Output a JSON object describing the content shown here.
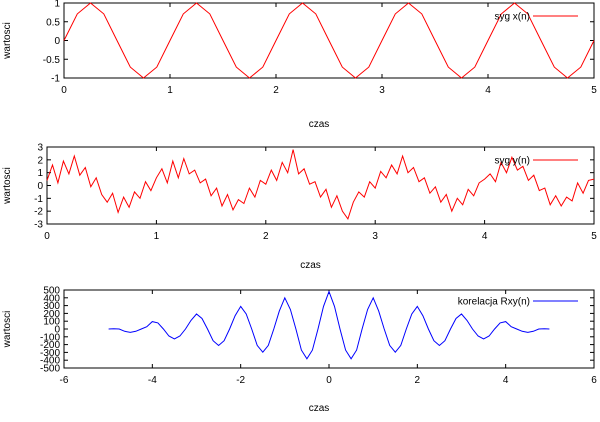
{
  "chart_data": [
    {
      "type": "line",
      "title": "",
      "xlabel": "czas",
      "ylabel": "wartosci",
      "xlim": [
        0,
        5
      ],
      "ylim": [
        -1,
        1
      ],
      "xticks": [
        "0",
        "1",
        "2",
        "3",
        "4",
        "5"
      ],
      "yticks": [
        "1",
        "0.5",
        "0",
        "-0.5",
        "-1"
      ],
      "legend_position": "top-right",
      "grid": false,
      "series": [
        {
          "name": "syg x(n)",
          "color": "#ff0000",
          "x": [
            0,
            0.125,
            0.25,
            0.375,
            0.5,
            0.625,
            0.75,
            0.875,
            1,
            1.125,
            1.25,
            1.375,
            1.5,
            1.625,
            1.75,
            1.875,
            2,
            2.125,
            2.25,
            2.375,
            2.5,
            2.625,
            2.75,
            2.875,
            3,
            3.125,
            3.25,
            3.375,
            3.5,
            3.625,
            3.75,
            3.875,
            4,
            4.125,
            4.25,
            4.375,
            4.5,
            4.625,
            4.75,
            4.875,
            5
          ],
          "values": [
            0,
            0.71,
            1,
            0.71,
            0,
            -0.71,
            -1,
            -0.71,
            0,
            0.71,
            1,
            0.71,
            0,
            -0.71,
            -1,
            -0.71,
            0,
            0.71,
            1,
            0.71,
            0,
            -0.71,
            -1,
            -0.71,
            0,
            0.71,
            1,
            0.71,
            0,
            -0.71,
            -1,
            -0.71,
            0,
            0.71,
            1,
            0.71,
            0,
            -0.71,
            -1,
            -0.71,
            0
          ]
        }
      ]
    },
    {
      "type": "line",
      "title": "",
      "xlabel": "czas",
      "ylabel": "wartosci",
      "xlim": [
        0,
        5
      ],
      "ylim": [
        -3,
        3
      ],
      "xticks": [
        "0",
        "1",
        "2",
        "3",
        "4",
        "5"
      ],
      "yticks": [
        "3",
        "2",
        "1",
        "0",
        "-1",
        "-2",
        "-3"
      ],
      "legend_position": "top-right",
      "grid": false,
      "series": [
        {
          "name": "syg y(n)",
          "color": "#ff0000",
          "x": [
            0,
            0.05,
            0.1,
            0.15,
            0.2,
            0.25,
            0.3,
            0.35,
            0.4,
            0.45,
            0.5,
            0.55,
            0.6,
            0.65,
            0.7,
            0.75,
            0.8,
            0.85,
            0.9,
            0.95,
            1,
            1.05,
            1.1,
            1.15,
            1.2,
            1.25,
            1.3,
            1.35,
            1.4,
            1.45,
            1.5,
            1.55,
            1.6,
            1.65,
            1.7,
            1.75,
            1.8,
            1.85,
            1.9,
            1.95,
            2,
            2.05,
            2.1,
            2.15,
            2.2,
            2.25,
            2.3,
            2.35,
            2.4,
            2.45,
            2.5,
            2.55,
            2.6,
            2.65,
            2.7,
            2.75,
            2.8,
            2.85,
            2.9,
            2.95,
            3,
            3.05,
            3.1,
            3.15,
            3.2,
            3.25,
            3.3,
            3.35,
            3.4,
            3.45,
            3.5,
            3.55,
            3.6,
            3.65,
            3.7,
            3.75,
            3.8,
            3.85,
            3.9,
            3.95,
            4,
            4.05,
            4.1,
            4.15,
            4.2,
            4.25,
            4.3,
            4.35,
            4.4,
            4.45,
            4.5,
            4.55,
            4.6,
            4.65,
            4.7,
            4.75,
            4.8,
            4.85,
            4.9,
            4.95,
            5
          ],
          "values": [
            0.4,
            1.6,
            0.2,
            1.9,
            0.9,
            2.3,
            0.8,
            1.4,
            -0.1,
            0.6,
            -0.7,
            -1.3,
            -0.6,
            -2.1,
            -0.9,
            -1.7,
            -0.5,
            -1.0,
            0.3,
            -0.4,
            0.6,
            1.3,
            0.2,
            1.9,
            0.6,
            2.1,
            0.9,
            1.2,
            0.2,
            0.5,
            -0.8,
            -0.2,
            -1.6,
            -0.7,
            -1.9,
            -1.1,
            -1.4,
            -0.2,
            -0.9,
            0.4,
            0.1,
            1.2,
            0.4,
            1.8,
            1.0,
            2.8,
            0.9,
            1.3,
            0.1,
            0.3,
            -0.9,
            -0.3,
            -1.7,
            -0.8,
            -2.0,
            -2.6,
            -1.3,
            -0.5,
            -0.9,
            0.3,
            -0.2,
            1.1,
            0.6,
            1.6,
            0.9,
            2.3,
            1.0,
            1.4,
            0.3,
            0.6,
            -0.6,
            -0.1,
            -1.3,
            -0.7,
            -2.0,
            -1.0,
            -1.5,
            -0.3,
            -0.8,
            0.2,
            0.5,
            0.9,
            0.3,
            1.8,
            1.0,
            2.2,
            1.2,
            1.5,
            0.4,
            0.8,
            -0.4,
            -0.2,
            -1.5,
            -0.8,
            -1.6,
            -0.9,
            -1.2,
            0.2,
            -0.6,
            0.4,
            0.5
          ]
        }
      ]
    },
    {
      "type": "line",
      "title": "",
      "xlabel": "czas",
      "ylabel": "wartosci",
      "xlim": [
        -6,
        6
      ],
      "ylim": [
        -500,
        500
      ],
      "xticks": [
        "-6",
        "-4",
        "-2",
        "0",
        "2",
        "4",
        "6"
      ],
      "yticks": [
        "500",
        "400",
        "300",
        "200",
        "100",
        "0",
        "-100",
        "-200",
        "-300",
        "-400",
        "-500"
      ],
      "legend_position": "top-right",
      "grid": false,
      "series": [
        {
          "name": "korelacja Rxy(n)",
          "color": "#0000ff",
          "x": [
            -4.99,
            -4.875,
            -4.75,
            -4.625,
            -4.5,
            -4.375,
            -4.25,
            -4.125,
            -4,
            -3.875,
            -3.75,
            -3.625,
            -3.5,
            -3.375,
            -3.25,
            -3.125,
            -3,
            -2.875,
            -2.75,
            -2.625,
            -2.5,
            -2.375,
            -2.25,
            -2.125,
            -2,
            -1.875,
            -1.75,
            -1.625,
            -1.5,
            -1.375,
            -1.25,
            -1.125,
            -1,
            -0.875,
            -0.75,
            -0.625,
            -0.5,
            -0.375,
            -0.25,
            -0.125,
            0,
            0.125,
            0.25,
            0.375,
            0.5,
            0.625,
            0.75,
            0.875,
            1,
            1.125,
            1.25,
            1.375,
            1.5,
            1.625,
            1.75,
            1.875,
            2,
            2.125,
            2.25,
            2.375,
            2.5,
            2.625,
            2.75,
            2.875,
            3,
            3.125,
            3.25,
            3.375,
            3.5,
            3.625,
            3.75,
            3.875,
            4,
            4.125,
            4.25,
            4.375,
            4.5,
            4.625,
            4.75,
            4.875,
            4.99
          ],
          "values": [
            0,
            2,
            0,
            -30,
            -43,
            -30,
            0,
            30,
            95,
            78,
            0,
            -90,
            -127,
            -90,
            0,
            110,
            192,
            135,
            0,
            -150,
            -212,
            -150,
            0,
            170,
            290,
            192,
            0,
            -210,
            -297,
            -210,
            0,
            230,
            400,
            250,
            0,
            -270,
            -382,
            -270,
            0,
            290,
            480,
            290,
            0,
            -270,
            -382,
            -270,
            0,
            250,
            400,
            230,
            0,
            -210,
            -297,
            -210,
            0,
            192,
            290,
            170,
            0,
            -150,
            -212,
            -150,
            0,
            135,
            192,
            110,
            0,
            -90,
            -127,
            -90,
            0,
            78,
            95,
            30,
            0,
            -30,
            -43,
            -30,
            0,
            2,
            0
          ]
        }
      ]
    }
  ]
}
